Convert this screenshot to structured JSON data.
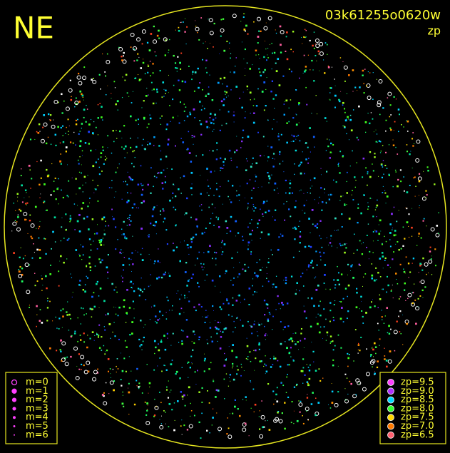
{
  "header": {
    "direction": "NE",
    "image_id": "03k61255o0620w",
    "color_key": "zp"
  },
  "magnitude_legend": {
    "items": [
      "m=0",
      "m=1",
      "m=2",
      "m=3",
      "m=4",
      "m=5",
      "m=6"
    ]
  },
  "zp_legend": {
    "items": [
      {
        "label": "zp=9.5",
        "color": "#ff40ff"
      },
      {
        "label": "zp=9.0",
        "color": "#b030ff"
      },
      {
        "label": "zp=8.5",
        "color": "#00d8ff"
      },
      {
        "label": "zp=8.0",
        "color": "#30ff30"
      },
      {
        "label": "zp=7.5",
        "color": "#ffd800"
      },
      {
        "label": "zp=7.0",
        "color": "#ff7a00"
      },
      {
        "label": "zp=6.5",
        "color": "#ff6070"
      }
    ]
  }
}
